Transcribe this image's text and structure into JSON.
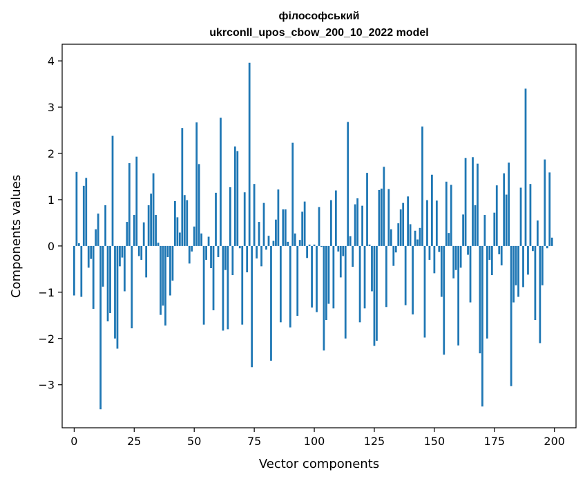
{
  "chart_data": {
    "type": "bar",
    "title": "філософський",
    "subtitle": "ukrconll_upos_cbow_200_10_2022 model",
    "xlabel": "Vector components",
    "ylabel": "Components values",
    "xlim": [
      -5,
      209
    ],
    "ylim": [
      -3.93,
      4.36
    ],
    "xticks": [
      0,
      25,
      50,
      75,
      100,
      125,
      150,
      175,
      200
    ],
    "yticks": [
      -3,
      -2,
      -1,
      0,
      1,
      2,
      3,
      4
    ],
    "grid": false,
    "bar_color": "#1f77b4",
    "x": [
      0,
      1,
      2,
      3,
      4,
      5,
      6,
      7,
      8,
      9,
      10,
      11,
      12,
      13,
      14,
      15,
      16,
      17,
      18,
      19,
      20,
      21,
      22,
      23,
      24,
      25,
      26,
      27,
      28,
      29,
      30,
      31,
      32,
      33,
      34,
      35,
      36,
      37,
      38,
      39,
      40,
      41,
      42,
      43,
      44,
      45,
      46,
      47,
      48,
      49,
      50,
      51,
      52,
      53,
      54,
      55,
      56,
      57,
      58,
      59,
      60,
      61,
      62,
      63,
      64,
      65,
      66,
      67,
      68,
      69,
      70,
      71,
      72,
      73,
      74,
      75,
      76,
      77,
      78,
      79,
      80,
      81,
      82,
      83,
      84,
      85,
      86,
      87,
      88,
      89,
      90,
      91,
      92,
      93,
      94,
      95,
      96,
      97,
      98,
      99,
      100,
      101,
      102,
      103,
      104,
      105,
      106,
      107,
      108,
      109,
      110,
      111,
      112,
      113,
      114,
      115,
      116,
      117,
      118,
      119,
      120,
      121,
      122,
      123,
      124,
      125,
      126,
      127,
      128,
      129,
      130,
      131,
      132,
      133,
      134,
      135,
      136,
      137,
      138,
      139,
      140,
      141,
      142,
      143,
      144,
      145,
      146,
      147,
      148,
      149,
      150,
      151,
      152,
      153,
      154,
      155,
      156,
      157,
      158,
      159,
      160,
      161,
      162,
      163,
      164,
      165,
      166,
      167,
      168,
      169,
      170,
      171,
      172,
      173,
      174,
      175,
      176,
      177,
      178,
      179,
      180,
      181,
      182,
      183,
      184,
      185,
      186,
      187,
      188,
      189,
      190,
      191,
      192,
      193,
      194,
      195,
      196,
      197,
      198,
      199
    ],
    "values": [
      -1.07,
      1.6,
      0.06,
      -1.1,
      1.3,
      1.47,
      -0.47,
      -0.28,
      -1.36,
      0.36,
      0.7,
      -3.53,
      -0.88,
      0.88,
      -1.63,
      -1.45,
      2.38,
      -2.0,
      -2.22,
      -0.44,
      -0.25,
      -0.98,
      0.52,
      1.79,
      -1.78,
      0.67,
      1.93,
      -0.22,
      -0.3,
      0.51,
      -0.68,
      0.88,
      1.13,
      1.57,
      0.67,
      0.07,
      -1.49,
      -1.29,
      -1.72,
      -0.24,
      -1.07,
      -0.75,
      0.97,
      0.62,
      0.29,
      2.55,
      1.1,
      0.99,
      -0.38,
      -0.12,
      0.42,
      2.67,
      1.77,
      0.27,
      -1.7,
      -0.3,
      0.2,
      -0.48,
      -1.39,
      1.15,
      -0.24,
      2.77,
      -1.83,
      -0.52,
      -1.8,
      1.27,
      -0.63,
      2.15,
      2.05,
      -0.05,
      -1.7,
      1.16,
      -0.57,
      3.96,
      -2.62,
      1.34,
      -0.27,
      0.52,
      -0.44,
      0.93,
      -0.08,
      0.22,
      -2.48,
      0.11,
      0.57,
      1.22,
      -1.65,
      0.79,
      0.79,
      0.09,
      -1.76,
      2.23,
      0.27,
      -1.51,
      0.13,
      0.74,
      0.96,
      -0.26,
      0.03,
      -1.33,
      0.03,
      -1.43,
      0.84,
      -0.02,
      -2.26,
      -1.6,
      -1.25,
      0.99,
      -1.35,
      1.2,
      -0.12,
      -0.68,
      -0.22,
      -2.0,
      2.68,
      0.21,
      -0.45,
      0.9,
      1.03,
      -1.65,
      0.87,
      -1.35,
      1.58,
      0.03,
      -0.98,
      -2.16,
      -2.05,
      1.21,
      1.24,
      1.71,
      -1.32,
      1.23,
      0.36,
      -0.43,
      -0.14,
      0.49,
      0.79,
      0.93,
      -1.28,
      1.07,
      0.47,
      -1.48,
      0.33,
      0.14,
      0.39,
      2.58,
      -1.98,
      0.99,
      -0.3,
      1.54,
      -0.59,
      0.98,
      -0.13,
      -1.1,
      -2.35,
      1.39,
      0.28,
      1.32,
      -0.7,
      -0.52,
      -2.15,
      -0.47,
      0.68,
      1.9,
      -0.19,
      -1.22,
      1.92,
      0.88,
      1.78,
      -2.32,
      -3.47,
      0.67,
      -2.0,
      -0.3,
      -0.63,
      0.72,
      1.31,
      -0.18,
      -0.42,
      1.57,
      1.11,
      1.8,
      -3.03,
      -1.22,
      -0.85,
      -1.1,
      1.26,
      -0.89,
      3.4,
      -0.62,
      1.34,
      -0.11,
      -1.6,
      0.55,
      -2.1,
      -0.85,
      1.87,
      -0.05,
      1.59,
      0.18
    ]
  }
}
